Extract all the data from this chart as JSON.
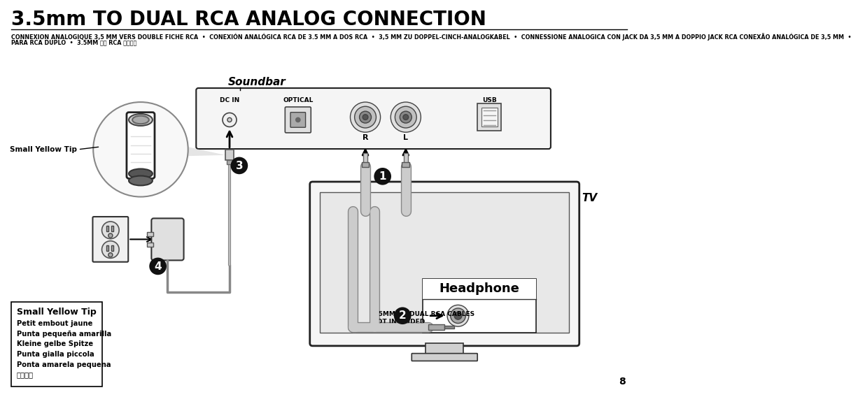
{
  "title": "3.5mm TO DUAL RCA ANALOG CONNECTION",
  "subtitle_line1": "CONNEXION ANALOGIQUE 3,5 MM VERS DOUBLE FICHE RCA  •  CONEXIÓN ANALÓGICA RCA DE 3.5 MM A DOS RCA  •  3,5 MM ZU DOPPEL-CINCH-ANALOGKABEL  •  CONNESSIONE ANALOGICA CON JACK DA 3,5 MM A DOPPIO JACK RCA CONEXÃO ANALÓGICA DE 3,5 MM  •",
  "subtitle_line2": "PARA RCA DUPLO  •  3.5MM 转双 RCA 模拟连接",
  "page_number": "8",
  "box_title": "Small Yellow Tip",
  "box_lines": [
    "Petit embout jaune",
    "Punta pequeña amarilla",
    "Kleine gelbe Spitze",
    "Punta gialla piccola",
    "Ponta amarela pequena",
    "黄色细端"
  ],
  "label_soundbar": "Soundbar",
  "label_tv": "TV",
  "label_headphone": "Headphone",
  "label_dc_in": "DC IN",
  "label_optical": "OPTICAL",
  "label_usb": "USB",
  "label_r": "R",
  "label_l": "L",
  "label_small_yellow_tip": "Small Yellow Tip",
  "label_cables_1": "3.5MM TO DUAL RCA CABLES",
  "label_cables_2": "NOT INCLUDED",
  "bg_color": "#ffffff",
  "text_color": "#000000",
  "box_bg": "#ffffff",
  "soundbar_fill": "#f5f5f5",
  "tv_fill": "#f5f5f5",
  "circle_fill": "#111111",
  "cable_color": "#cccccc",
  "cable_outline": "#888888"
}
